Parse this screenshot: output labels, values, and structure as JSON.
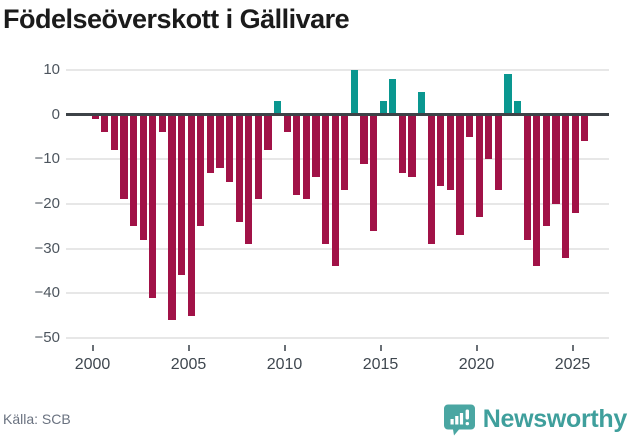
{
  "header": {
    "title": "Födelseöverskott i Gällivare"
  },
  "chart_data": {
    "type": "bar",
    "title": "Födelseöverskott i Gällivare",
    "x_unit": "half-year",
    "periods": [
      "2000 H1",
      "2000 H2",
      "2001 H1",
      "2001 H2",
      "2002 H1",
      "2002 H2",
      "2003 H1",
      "2003 H2",
      "2004 H1",
      "2004 H2",
      "2005 H1",
      "2005 H2",
      "2006 H1",
      "2006 H2",
      "2007 H1",
      "2007 H2",
      "2008 H1",
      "2008 H2",
      "2009 H1",
      "2009 H2",
      "2010 H1",
      "2010 H2",
      "2011 H1",
      "2011 H2",
      "2012 H1",
      "2012 H2",
      "2013 H1",
      "2013 H2",
      "2014 H1",
      "2014 H2",
      "2015 H1",
      "2015 H2",
      "2016 H1",
      "2016 H2",
      "2017 H1",
      "2017 H2",
      "2018 H1",
      "2018 H2",
      "2019 H1",
      "2019 H2",
      "2020 H1",
      "2020 H2",
      "2021 H1",
      "2021 H2",
      "2022 H1",
      "2022 H2",
      "2023 H1",
      "2023 H2",
      "2024 H1",
      "2024 H2",
      "2025 H1",
      "2025 H2"
    ],
    "values": [
      -1,
      -4,
      -8,
      -19,
      -25,
      -28,
      -41,
      -4,
      -46,
      -36,
      -45,
      -25,
      -13,
      -12,
      -15,
      -24,
      -29,
      -19,
      -8,
      3,
      -4,
      -18,
      -19,
      -14,
      -29,
      -34,
      -17,
      10,
      -11,
      -26,
      3,
      8,
      -13,
      -14,
      5,
      -29,
      -16,
      -17,
      -27,
      -5,
      -23,
      -10,
      -17,
      9,
      3,
      -28,
      -34,
      -25,
      -20,
      -32,
      -22,
      -6
    ],
    "x_tick_labels": [
      "2000",
      "2005",
      "2010",
      "2015",
      "2020",
      "2025"
    ],
    "x_tick_years": [
      2000,
      2005,
      2010,
      2015,
      2020,
      2025
    ],
    "y_tick_labels": [
      "10",
      "0",
      "−10",
      "−20",
      "−30",
      "−40",
      "−50"
    ],
    "y_tick_values": [
      10,
      0,
      -10,
      -20,
      -30,
      -40,
      -50
    ],
    "ylim": [
      -50,
      10
    ],
    "grid": "horizontal",
    "legend": "none",
    "colors": {
      "negative": "#a11247",
      "positive": "#0a9790"
    }
  },
  "footer": {
    "source": "Källa: SCB",
    "brand": "Newsworthy"
  },
  "brand_color": "#3f9f9c"
}
